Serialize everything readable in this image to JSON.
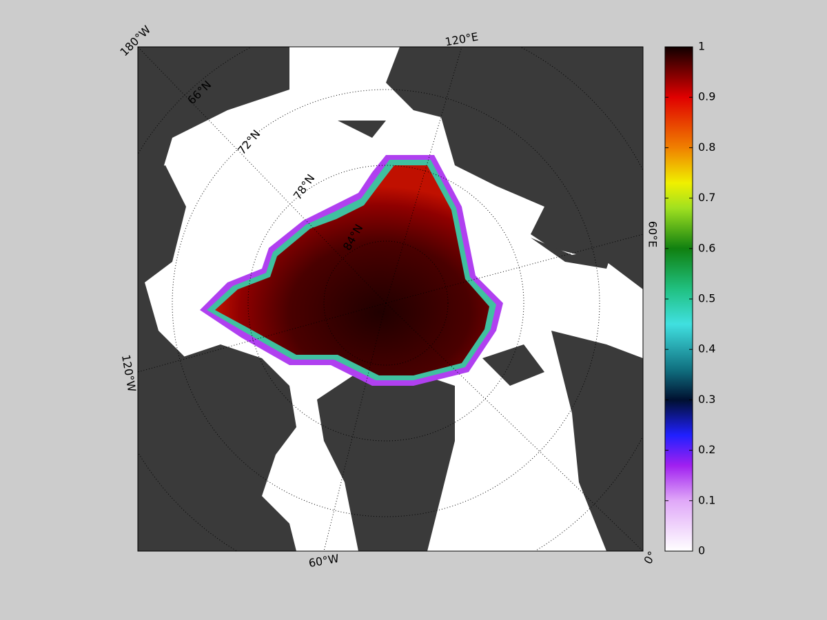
{
  "map": {
    "lon_labels": [
      "180°W",
      "120°E",
      "60°E",
      "0°",
      "60°W",
      "120°W"
    ],
    "lat_labels": [
      "66°N",
      "72°N",
      "78°N",
      "84°N"
    ]
  },
  "colorbar": {
    "lim": [
      0,
      1
    ],
    "ticks": [
      0,
      0.1,
      0.2,
      0.3,
      0.4,
      0.5,
      0.6,
      0.7,
      0.8,
      0.9,
      1
    ]
  }
}
